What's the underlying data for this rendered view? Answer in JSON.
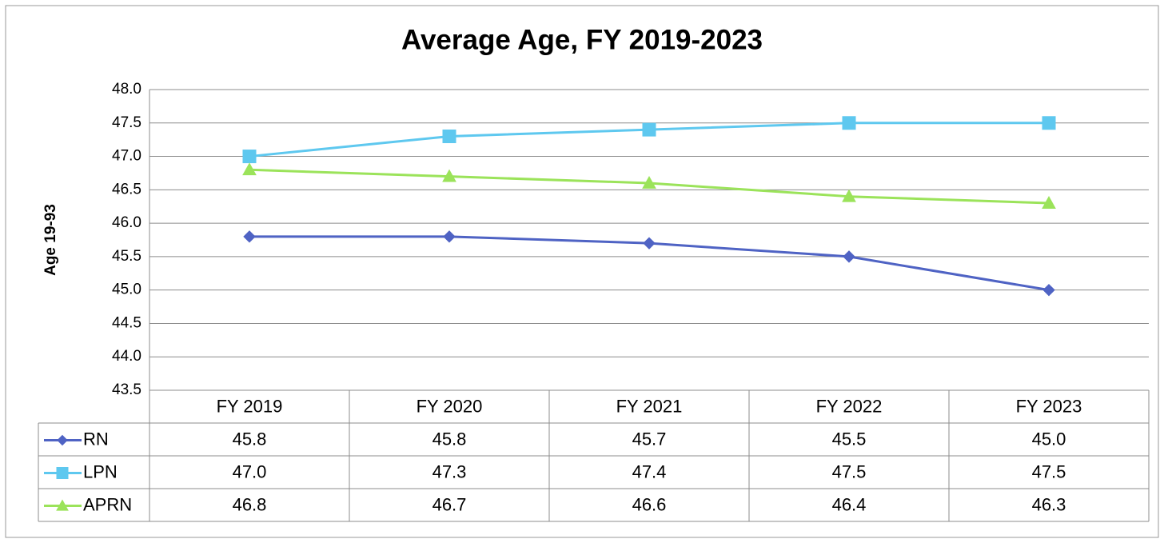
{
  "chart_data": {
    "type": "line",
    "title": "Average Age, FY 2019-2023",
    "y_label": "Age 19-93",
    "categories": [
      "FY 2019",
      "FY 2020",
      "FY 2021",
      "FY 2022",
      "FY 2023"
    ],
    "series": [
      {
        "name": "RN",
        "color": "#4f63c4",
        "marker": "diamond",
        "values": [
          45.8,
          45.8,
          45.7,
          45.5,
          45.0
        ],
        "value_labels": [
          "45.8",
          "45.8",
          "45.7",
          "45.5",
          "45.0"
        ]
      },
      {
        "name": "LPN",
        "color": "#5ec8ef",
        "marker": "square",
        "values": [
          47.0,
          47.3,
          47.4,
          47.5,
          47.5
        ],
        "value_labels": [
          "47.0",
          "47.3",
          "47.4",
          "47.5",
          "47.5"
        ]
      },
      {
        "name": "APRN",
        "color": "#9be35a",
        "marker": "triangle",
        "values": [
          46.8,
          46.7,
          46.6,
          46.4,
          46.3
        ],
        "value_labels": [
          "46.8",
          "46.7",
          "46.6",
          "46.4",
          "46.3"
        ]
      }
    ],
    "ylim": [
      43.5,
      48
    ],
    "yticks": [
      43.5,
      {
        "value": 44,
        "label": "44.0"
      },
      44.5,
      {
        "value": 45,
        "label": "45.0"
      },
      45.5,
      {
        "value": 46,
        "label": "46.0"
      },
      46.5,
      {
        "value": 47,
        "label": "47.0"
      },
      47.5,
      {
        "value": 48,
        "label": "48.0"
      }
    ],
    "grid": true,
    "data_table": true
  }
}
